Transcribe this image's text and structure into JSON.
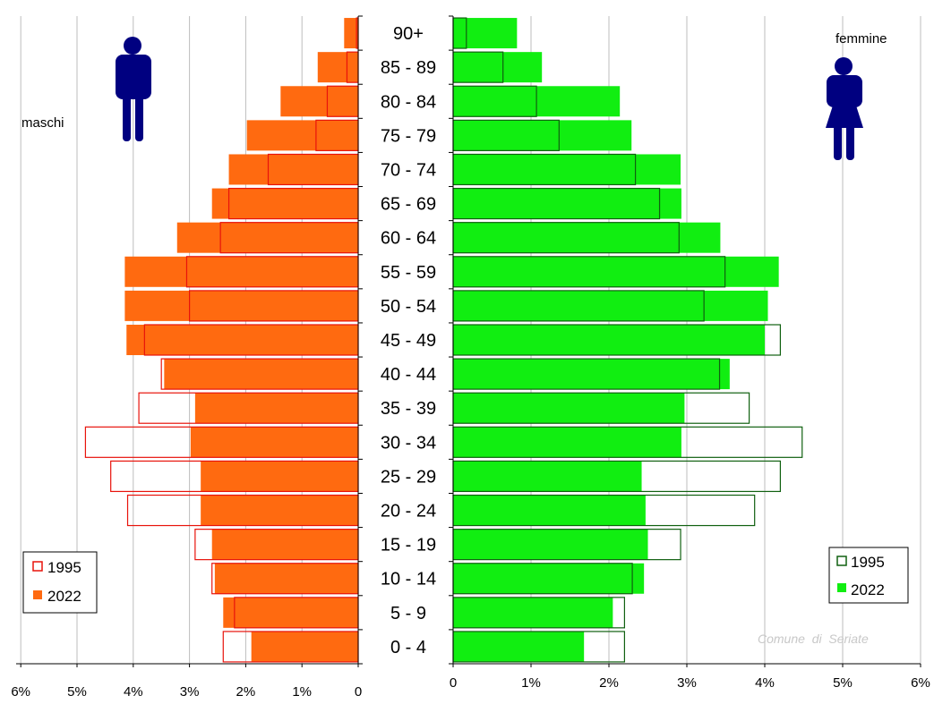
{
  "chart_data": {
    "type": "bar",
    "subtype": "population-pyramid",
    "categories": [
      "0 - 4",
      "5 - 9",
      "10 - 14",
      "15 - 19",
      "20 - 24",
      "25 - 29",
      "30 - 34",
      "35 - 39",
      "40 - 44",
      "45 - 49",
      "50 - 54",
      "55 - 59",
      "60 - 64",
      "65 - 69",
      "70 - 74",
      "75 - 79",
      "80 - 84",
      "85 - 89",
      "90+"
    ],
    "males": {
      "label": "maschi",
      "color_2022": "#ff6a10",
      "color_1995": "#e8130b",
      "series": [
        {
          "name": "1995",
          "style": "outline",
          "values": [
            2.4,
            2.2,
            2.6,
            2.9,
            4.1,
            4.4,
            4.85,
            3.9,
            3.5,
            3.8,
            3.0,
            3.05,
            2.45,
            2.3,
            1.6,
            0.75,
            0.55,
            0.2,
            0.03
          ]
        },
        {
          "name": "2022",
          "style": "filled",
          "values": [
            1.9,
            2.4,
            2.55,
            2.6,
            2.8,
            2.8,
            2.98,
            2.9,
            3.45,
            4.12,
            4.15,
            4.15,
            3.22,
            2.6,
            2.3,
            1.98,
            1.38,
            0.72,
            0.25
          ]
        }
      ],
      "xticks": [
        "6%",
        "5%",
        "4%",
        "3%",
        "2%",
        "1%",
        "0"
      ],
      "xlim": [
        0,
        6
      ]
    },
    "females": {
      "label": "femmine",
      "color_2022": "#11ee11",
      "color_1995": "#106010",
      "series": [
        {
          "name": "1995",
          "style": "outline",
          "values": [
            2.2,
            2.2,
            2.3,
            2.92,
            3.87,
            4.2,
            4.48,
            3.8,
            3.42,
            4.2,
            3.22,
            3.49,
            2.9,
            2.65,
            2.34,
            1.36,
            1.07,
            0.64,
            0.17
          ]
        },
        {
          "name": "2022",
          "style": "filled",
          "values": [
            1.68,
            2.05,
            2.45,
            2.5,
            2.47,
            2.42,
            2.93,
            2.97,
            3.55,
            4.0,
            4.04,
            4.18,
            3.43,
            2.93,
            2.92,
            2.29,
            2.14,
            1.14,
            0.82
          ]
        }
      ],
      "xticks": [
        "0",
        "1%",
        "2%",
        "3%",
        "4%",
        "5%",
        "6%"
      ],
      "xlim": [
        0,
        6
      ]
    },
    "legend": [
      "1995",
      "2022"
    ],
    "grid": true,
    "credit": "Comune  di  Seriate"
  },
  "icons": {
    "male": "man-silhouette-icon",
    "female": "woman-silhouette-icon",
    "icon_color": "#000080"
  }
}
